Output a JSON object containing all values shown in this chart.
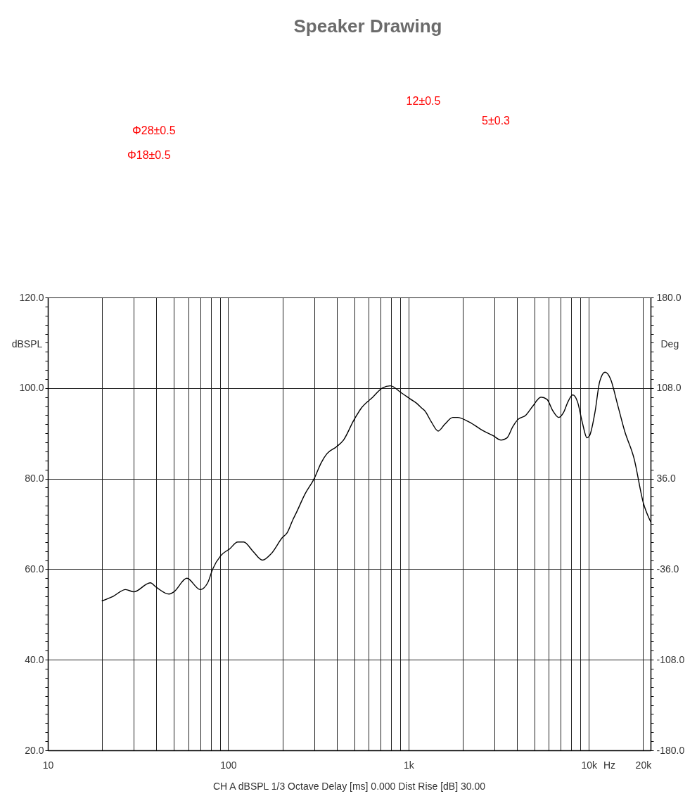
{
  "chart_data": [
    {
      "type": "other",
      "title": "Speaker Drawing",
      "annotations": [
        "Φ28±0.5",
        "Φ18±0.5",
        "12±0.5",
        "5±0.3"
      ]
    },
    {
      "type": "line",
      "xlabel": "Hz",
      "ylabel": "dBSPL",
      "y2label": "Deg",
      "annotations": [
        "CH A  dBSPL  1/3 Octave  Delay [ms] 0.000  Dist Rise [dB] 30.00"
      ],
      "x": [
        20,
        23,
        27,
        30,
        37,
        40,
        47,
        50,
        59,
        70,
        77,
        82,
        91,
        102,
        113,
        122,
        137,
        155,
        174,
        200,
        212,
        229,
        239,
        266,
        300,
        328,
        353,
        398,
        436,
        499,
        546,
        634,
        715,
        794,
        909,
        1030,
        1120,
        1190,
        1230,
        1340,
        1460,
        1590,
        1760,
        1870,
        2170,
        2610,
        2940,
        3260,
        3520,
        3790,
        4030,
        4470,
        4890,
        5430,
        5860,
        6310,
        6810,
        7220,
        7670,
        8140,
        8650,
        9190,
        9770,
        10100,
        10800,
        11500,
        12300,
        13200,
        14400,
        15800,
        17800,
        20100,
        22000
      ],
      "series": [
        {
          "color": "#000000",
          "values": [
            53.0,
            54.0,
            55.5,
            55.0,
            57.0,
            56.0,
            54.5,
            55.0,
            58.0,
            55.5,
            57.0,
            60.0,
            63.0,
            64.5,
            66.0,
            66.0,
            64.0,
            62.0,
            63.5,
            67.0,
            68.0,
            71.0,
            72.5,
            76.5,
            80.0,
            83.5,
            85.5,
            87.0,
            88.5,
            93.0,
            95.5,
            98.0,
            100.0,
            100.5,
            99.0,
            97.5,
            96.5,
            95.5,
            95.0,
            92.5,
            90.5,
            92.0,
            93.5,
            93.5,
            92.5,
            90.5,
            89.5,
            88.5,
            89.0,
            91.5,
            93.0,
            94.0,
            96.0,
            98.0,
            97.5,
            95.0,
            93.5,
            94.5,
            97.0,
            98.5,
            97.0,
            92.5,
            89.0,
            89.5,
            94.5,
            101.5,
            103.5,
            102.0,
            96.5,
            90.5,
            84.5,
            74.5,
            70.5
          ]
        }
      ],
      "xlim": [
        10,
        22000
      ],
      "ylim": [
        20,
        120
      ],
      "y2lim": [
        -180,
        180
      ],
      "xticks": [
        10,
        {
          "value": 20,
          "label": null
        },
        {
          "value": 30,
          "label": null
        },
        {
          "value": 40,
          "label": null
        },
        {
          "value": 50,
          "label": null
        },
        {
          "value": 60,
          "label": null
        },
        {
          "value": 70,
          "label": null
        },
        {
          "value": 80,
          "label": null
        },
        {
          "value": 90,
          "label": null
        },
        100,
        {
          "value": 200,
          "label": null
        },
        {
          "value": 300,
          "label": null
        },
        {
          "value": 400,
          "label": null
        },
        {
          "value": 500,
          "label": null
        },
        {
          "value": 600,
          "label": null
        },
        {
          "value": 700,
          "label": null
        },
        {
          "value": 800,
          "label": null
        },
        {
          "value": 900,
          "label": null
        },
        {
          "value": 1000,
          "label": "1k"
        },
        {
          "value": 2000,
          "label": null
        },
        {
          "value": 3000,
          "label": null
        },
        {
          "value": 4000,
          "label": null
        },
        {
          "value": 5000,
          "label": null
        },
        {
          "value": 6000,
          "label": null
        },
        {
          "value": 7000,
          "label": null
        },
        {
          "value": 8000,
          "label": null
        },
        {
          "value": 9000,
          "label": null
        },
        {
          "value": 10000,
          "label": "10k"
        },
        {
          "value": 20000,
          "label": "20k"
        }
      ],
      "yticks": [
        {
          "value": 20,
          "label": "20.0"
        },
        {
          "value": 22,
          "label": null
        },
        {
          "value": 24,
          "label": null
        },
        {
          "value": 26,
          "label": null
        },
        {
          "value": 28,
          "label": null
        },
        {
          "value": 30,
          "label": null
        },
        {
          "value": 32,
          "label": null
        },
        {
          "value": 34,
          "label": null
        },
        {
          "value": 36,
          "label": null
        },
        {
          "value": 38,
          "label": null
        },
        {
          "value": 40,
          "label": "40.0"
        },
        {
          "value": 42,
          "label": null
        },
        {
          "value": 44,
          "label": null
        },
        {
          "value": 46,
          "label": null
        },
        {
          "value": 48,
          "label": null
        },
        {
          "value": 50,
          "label": null
        },
        {
          "value": 52,
          "label": null
        },
        {
          "value": 54,
          "label": null
        },
        {
          "value": 56,
          "label": null
        },
        {
          "value": 58,
          "label": null
        },
        {
          "value": 60,
          "label": "60.0"
        },
        {
          "value": 62,
          "label": null
        },
        {
          "value": 64,
          "label": null
        },
        {
          "value": 66,
          "label": null
        },
        {
          "value": 68,
          "label": null
        },
        {
          "value": 70,
          "label": null
        },
        {
          "value": 72,
          "label": null
        },
        {
          "value": 74,
          "label": null
        },
        {
          "value": 76,
          "label": null
        },
        {
          "value": 78,
          "label": null
        },
        {
          "value": 80,
          "label": "80.0"
        },
        {
          "value": 82,
          "label": null
        },
        {
          "value": 84,
          "label": null
        },
        {
          "value": 86,
          "label": null
        },
        {
          "value": 88,
          "label": null
        },
        {
          "value": 90,
          "label": null
        },
        {
          "value": 92,
          "label": null
        },
        {
          "value": 94,
          "label": null
        },
        {
          "value": 96,
          "label": null
        },
        {
          "value": 98,
          "label": null
        },
        {
          "value": 100,
          "label": "100.0"
        },
        {
          "value": 102,
          "label": null
        },
        {
          "value": 104,
          "label": null
        },
        {
          "value": 106,
          "label": null
        },
        {
          "value": 108,
          "label": null
        },
        {
          "value": 110,
          "label": null
        },
        {
          "value": 112,
          "label": null
        },
        {
          "value": 114,
          "label": null
        },
        {
          "value": 116,
          "label": null
        },
        {
          "value": 118,
          "label": null
        },
        {
          "value": 120,
          "label": "120.0"
        }
      ],
      "y2ticks": [
        {
          "value": -180,
          "label": "-180.0"
        },
        {
          "value": -172.8,
          "label": null
        },
        {
          "value": -165.6,
          "label": null
        },
        {
          "value": -158.4,
          "label": null
        },
        {
          "value": -151.2,
          "label": null
        },
        {
          "value": -144,
          "label": null
        },
        {
          "value": -136.8,
          "label": null
        },
        {
          "value": -129.6,
          "label": null
        },
        {
          "value": -122.4,
          "label": null
        },
        {
          "value": -115.2,
          "label": null
        },
        {
          "value": -108,
          "label": "-108.0"
        },
        {
          "value": -100.8,
          "label": null
        },
        {
          "value": -93.6,
          "label": null
        },
        {
          "value": -86.4,
          "label": null
        },
        {
          "value": -79.2,
          "label": null
        },
        {
          "value": -72,
          "label": null
        },
        {
          "value": -64.8,
          "label": null
        },
        {
          "value": -57.6,
          "label": null
        },
        {
          "value": -50.4,
          "label": null
        },
        {
          "value": -43.2,
          "label": null
        },
        {
          "value": -36,
          "label": "-36.0"
        },
        {
          "value": -28.8,
          "label": null
        },
        {
          "value": -21.6,
          "label": null
        },
        {
          "value": -14.4,
          "label": null
        },
        {
          "value": -7.2,
          "label": null
        },
        {
          "value": 0,
          "label": null
        },
        {
          "value": 7.2,
          "label": null
        },
        {
          "value": 14.4,
          "label": null
        },
        {
          "value": 21.6,
          "label": null
        },
        {
          "value": 28.8,
          "label": null
        },
        {
          "value": 36,
          "label": "36.0"
        },
        {
          "value": 43.2,
          "label": null
        },
        {
          "value": 50.4,
          "label": null
        },
        {
          "value": 57.6,
          "label": null
        },
        {
          "value": 64.8,
          "label": null
        },
        {
          "value": 72,
          "label": null
        },
        {
          "value": 79.2,
          "label": null
        },
        {
          "value": 86.4,
          "label": null
        },
        {
          "value": 93.6,
          "label": null
        },
        {
          "value": 100.8,
          "label": null
        },
        {
          "value": 108,
          "label": "108.0"
        },
        {
          "value": 115.2,
          "label": null
        },
        {
          "value": 122.4,
          "label": null
        },
        {
          "value": 129.6,
          "label": null
        },
        {
          "value": 136.8,
          "label": null
        },
        {
          "value": 144,
          "label": null
        },
        {
          "value": 151.2,
          "label": null
        },
        {
          "value": 158.4,
          "label": null
        },
        {
          "value": 165.6,
          "label": null
        },
        {
          "value": 172.8,
          "label": null
        },
        {
          "value": 180,
          "label": "180.0"
        }
      ],
      "log": "x",
      "grid": true,
      "line_style": "solid"
    }
  ]
}
